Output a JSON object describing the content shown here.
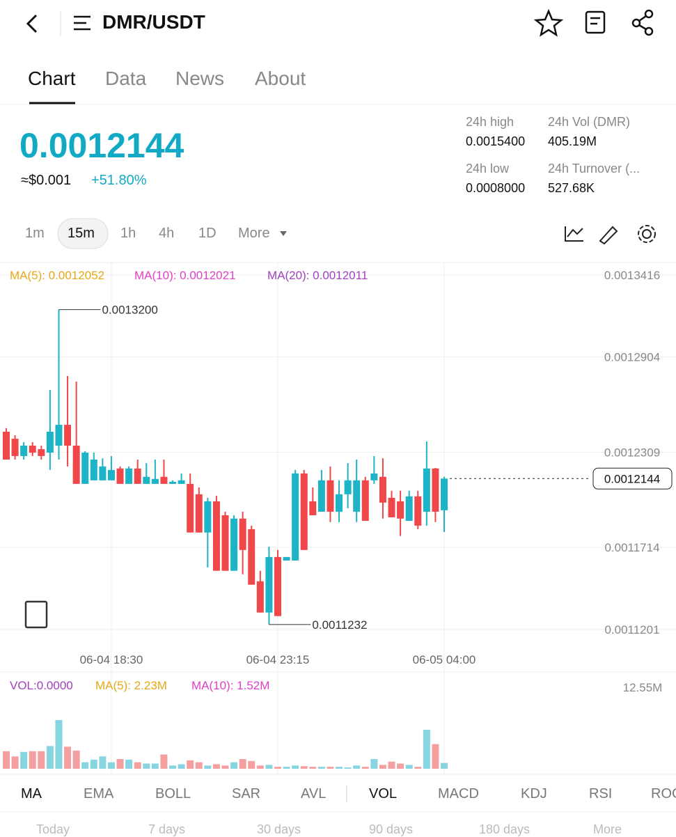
{
  "header": {
    "title": "DMR/USDT"
  },
  "tabs": [
    "Chart",
    "Data",
    "News",
    "About"
  ],
  "price": "0.0012144",
  "usd_price": "≈$0.001",
  "change": "+51.80%",
  "stats": [
    {
      "label": "24h high",
      "value": "0.0015400"
    },
    {
      "label": "24h Vol (DMR)",
      "value": "405.19M"
    },
    {
      "label": "24h low",
      "value": "0.0008000"
    },
    {
      "label": "24h Turnover (...",
      "value": "527.68K"
    }
  ],
  "intervals": [
    "1m",
    "15m",
    "1h",
    "4h",
    "1D",
    "More"
  ],
  "ma_legend": [
    "MA(5): 0.0012052",
    "MA(10): 0.0012021",
    "MA(20): 0.0012011"
  ],
  "vol_legend": [
    "VOL:0.0000",
    "MA(5): 2.23M",
    "MA(10): 1.52M"
  ],
  "indicators": [
    "MA",
    "EMA",
    "BOLL",
    "SAR",
    "AVL",
    "VOL",
    "MACD",
    "KDJ",
    "RSI",
    "ROC"
  ],
  "periods": [
    "Today",
    "7 days",
    "30 days",
    "90 days",
    "180 days",
    "More"
  ],
  "chart_data": {
    "type": "candlestick",
    "categories": [
      null,
      null,
      null,
      null,
      null,
      null,
      null,
      null,
      null,
      null,
      null,
      null,
      "06-04 18:30",
      null,
      null,
      null,
      null,
      null,
      null,
      null,
      null,
      null,
      null,
      null,
      null,
      null,
      null,
      null,
      null,
      null,
      null,
      "06-04 23:15",
      null,
      null,
      null,
      null,
      null,
      null,
      null,
      null,
      null,
      null,
      null,
      null,
      null,
      null,
      null,
      null,
      null,
      null,
      "06-05 04:00"
    ],
    "open": [
      0.0012437,
      0.0012393,
      0.0012285,
      0.001235,
      0.0012328,
      0.0012306,
      0.001235,
      0.001248,
      0.001235,
      0.0012111,
      0.0012133,
      0.0012133,
      0.0012133,
      0.0012207,
      0.0012111,
      0.0012207,
      0.0012111,
      0.0012111,
      0.0012155,
      0.0012111,
      0.0012111,
      0.0012111,
      0.0012046,
      0.0011807,
      0.0012002,
      0.0011915,
      0.0011568,
      0.0011894,
      0.0011828,
      0.0011502,
      0.0011307,
      0.0011654,
      0.0011632,
      0.0011632,
      0.0012176,
      0.0012002,
      0.0011937,
      0.0012133,
      0.0011937,
      0.0012046,
      0.0011937,
      0.0012133,
      0.0012133,
      0.0012155,
      0.0012024,
      0.0012002,
      0.001188,
      0.0012033,
      0.0011937,
      0.0012207,
      0.0011946
    ],
    "high": [
      0.0012459,
      0.0012415,
      0.0012372,
      0.0012372,
      0.001235,
      0.0012698,
      0.00132,
      0.0012785,
      0.001275,
      0.0012315,
      0.0012306,
      0.0012271,
      0.0012285,
      0.001222,
      0.001222,
      0.0012263,
      0.0012241,
      0.0012263,
      0.0012263,
      0.0012133,
      0.0012176,
      0.0012176,
      0.0012089,
      0.0012024,
      0.0012037,
      0.0011937,
      0.0011915,
      0.0011937,
      0.001185,
      0.0011568,
      0.0011719,
      0.0011698,
      0.0011654,
      0.0012198,
      0.0012198,
      0.0012089,
      0.0012198,
      0.001222,
      0.0012133,
      0.0012241,
      0.0012263,
      0.0012155,
      0.0012285,
      0.0012271,
      0.0012068,
      0.0012068,
      0.0012068,
      0.0012068,
      0.0012376,
      0.0012211,
      0.0012155
    ],
    "low": [
      0.0012263,
      0.0012263,
      0.0012263,
      0.0012285,
      0.0012263,
      0.0012198,
      0.0012263,
      0.001222,
      0.0012111,
      0.0012111,
      0.0012133,
      0.0012133,
      0.0012133,
      0.0012111,
      0.0012111,
      0.0012111,
      0.0012111,
      0.0012111,
      0.0012111,
      0.0012111,
      0.0012111,
      0.0011807,
      0.0011807,
      0.0011589,
      0.0011568,
      0.0011568,
      0.0011568,
      0.0011546,
      0.0011481,
      0.0011307,
      0.0011232,
      0.0011285,
      0.0011632,
      0.0011632,
      0.0011698,
      0.0011915,
      0.0011937,
      0.0011872,
      0.0011872,
      0.0011959,
      0.0011872,
      0.001188,
      0.0012111,
      0.0011894,
      0.0011902,
      0.0011785,
      0.001188,
      0.0011828,
      0.001185,
      0.0011872,
      0.0011811
    ],
    "close": [
      0.0012263,
      0.0012285,
      0.001235,
      0.0012306,
      0.0012285,
      0.0012437,
      0.001248,
      0.001235,
      0.0012111,
      0.0012306,
      0.0012263,
      0.001222,
      0.0012198,
      0.0012111,
      0.0012207,
      0.0012111,
      0.0012155,
      0.0012142,
      0.0012111,
      0.0012124,
      0.0012133,
      0.0011807,
      0.0011807,
      0.0012002,
      0.0011568,
      0.0011568,
      0.0011894,
      0.0011698,
      0.0011481,
      0.0011307,
      0.0011654,
      0.0011285,
      0.0011654,
      0.0012176,
      0.0011698,
      0.0011915,
      0.0012133,
      0.0011937,
      0.0012046,
      0.0012133,
      0.0012133,
      0.001188,
      0.0012176,
      0.0011994,
      0.0011902,
      0.0011894,
      0.0012033,
      0.001185,
      0.0012207,
      0.0011937,
      0.0012144
    ],
    "volume": [
      2.7,
      1.9,
      2.6,
      2.7,
      2.7,
      3.5,
      7.5,
      3.4,
      2.8,
      1.0,
      1.4,
      1.9,
      1.0,
      1.5,
      1.4,
      1.0,
      0.8,
      0.8,
      2.2,
      0.5,
      0.7,
      1.3,
      1.0,
      0.5,
      0.7,
      0.5,
      1.0,
      1.5,
      1.2,
      0.5,
      0.6,
      0.3,
      0.3,
      0.5,
      0.4,
      0.3,
      0.3,
      0.3,
      0.3,
      0.2,
      0.5,
      0.3,
      1.5,
      0.6,
      1.1,
      0.8,
      0.6,
      0.3,
      6.0,
      3.8,
      0.9
    ],
    "ylim": [
      0.0011201,
      0.0013416
    ],
    "yticks": [
      0.0013416,
      0.0012904,
      0.0012309,
      0.0011714,
      0.0011201
    ],
    "vlim": [
      0,
      12.55
    ],
    "vticks": [
      {
        "value": 12.55,
        "label": "12.55M"
      }
    ],
    "annotations": [
      {
        "value": 0.00132,
        "label": "0.0013200"
      },
      {
        "value": 0.0011232,
        "label": "0.0011232"
      }
    ],
    "up_color": "#1db4c8",
    "down_color": "#f0474a",
    "grid": true
  }
}
